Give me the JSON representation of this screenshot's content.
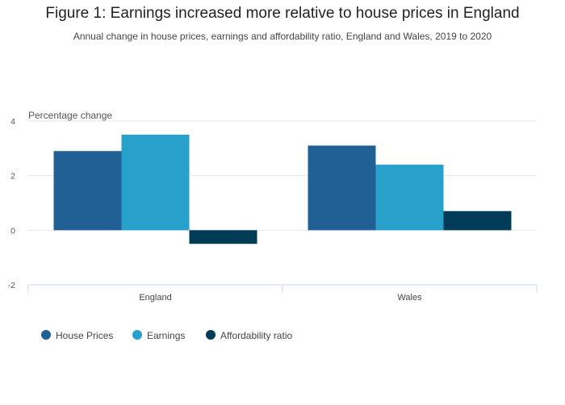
{
  "title": "Figure 1: Earnings increased more relative to house prices in England",
  "subtitle": "Annual change in house prices, earnings and affordability ratio, England and Wales, 2019 to 2020",
  "colors": {
    "house_prices": "#206095",
    "earnings": "#27a0cc",
    "affordability_ratio": "#003c57",
    "gridline": "#e6e6e6",
    "axis": "#ccd6eb"
  },
  "chart_data": {
    "type": "bar",
    "title": "Figure 1: Earnings increased more relative to house prices in England",
    "subtitle": "Annual change in house prices, earnings and affordability ratio, England and Wales, 2019 to 2020",
    "ylabel": "Percentage change",
    "xlabel": "",
    "categories": [
      "England",
      "Wales"
    ],
    "series": [
      {
        "name": "House Prices",
        "values": [
          2.9,
          3.1
        ]
      },
      {
        "name": "Earnings",
        "values": [
          3.5,
          2.4
        ]
      },
      {
        "name": "Affordability ratio",
        "values": [
          -0.5,
          0.7
        ]
      }
    ],
    "ylim": [
      -2,
      4
    ],
    "yticks": [
      4,
      2,
      0,
      -2
    ],
    "grid": true,
    "legend_position": "bottom-left"
  }
}
